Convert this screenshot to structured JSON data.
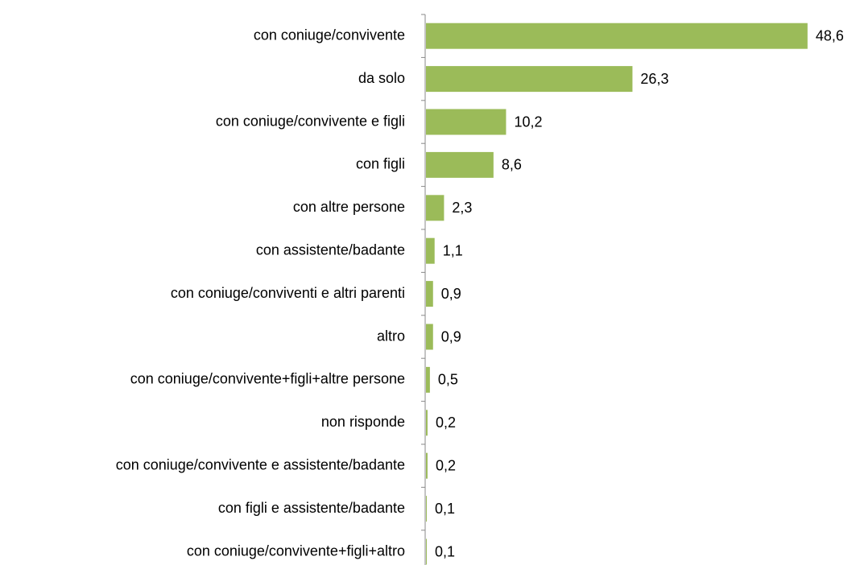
{
  "chart_data": {
    "type": "bar",
    "orientation": "horizontal",
    "categories": [
      "con coniuge/convivente",
      "da solo",
      "con coniuge/convivente e figli",
      "con figli",
      "con altre persone",
      "con assistente/badante",
      "con coniuge/conviventi e altri parenti",
      "altro",
      "con coniuge/convivente+figli+altre persone",
      "non risponde",
      "con coniuge/convivente e assistente/badante",
      "con figli e assistente/badante",
      "con coniuge/convivente+figli+altro"
    ],
    "values": [
      48.6,
      26.3,
      10.2,
      8.6,
      2.3,
      1.1,
      0.9,
      0.9,
      0.5,
      0.2,
      0.2,
      0.1,
      0.1
    ],
    "value_labels": [
      "48,6",
      "26,3",
      "10,2",
      "8,6",
      "2,3",
      "1,1",
      "0,9",
      "0,9",
      "0,5",
      "0,2",
      "0,2",
      "0,1",
      "0,1"
    ],
    "color": "#9bbb59"
  }
}
